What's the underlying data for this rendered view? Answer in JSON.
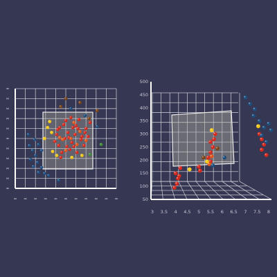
{
  "colors": {
    "background": "#363752",
    "grid": "#d8d8e0",
    "panel": "#b8b8a8",
    "panel_edge": "#ececec",
    "tick_text": "#c9cad6",
    "series_red": "#d42a1e",
    "series_dark_red": "#8a1f10",
    "series_orange": "#e0561c",
    "series_yellow": "#f2c818",
    "series_blue": "#1e4d7e",
    "series_green": "#3f8a3a",
    "series_brown": "#7a4418"
  },
  "chart_data": [
    {
      "type": "scatter",
      "view": "3d-front",
      "title": "",
      "xlabel": "",
      "ylabel": "",
      "xlim": [
        0,
        10
      ],
      "ylim": [
        0,
        10
      ],
      "grid": true,
      "series": [
        {
          "color": "#d42a1e",
          "points": [
            [
              4.4,
              6.1
            ],
            [
              5.2,
              5.6
            ],
            [
              6.0,
              6.3
            ],
            [
              4.9,
              5.0
            ],
            [
              5.6,
              4.6
            ],
            [
              6.6,
              5.2
            ],
            [
              4.3,
              4.3
            ],
            [
              5.0,
              6.8
            ],
            [
              6.3,
              6.9
            ],
            [
              7.0,
              6.0
            ],
            [
              5.4,
              3.9
            ],
            [
              4.6,
              3.6
            ],
            [
              6.8,
              4.3
            ],
            [
              5.9,
              5.4
            ],
            [
              4.1,
              5.4
            ],
            [
              7.2,
              5.2
            ],
            [
              5.1,
              4.2
            ],
            [
              6.1,
              3.6
            ],
            [
              3.9,
              4.7
            ],
            [
              5.7,
              6.1
            ],
            [
              6.5,
              4.9
            ],
            [
              4.8,
              6.4
            ],
            [
              7.4,
              6.6
            ],
            [
              5.3,
              5.1
            ],
            [
              4.5,
              3.1
            ],
            [
              6.2,
              6.0
            ],
            [
              5.5,
              7.1
            ],
            [
              6.9,
              5.6
            ],
            [
              4.2,
              5.9
            ],
            [
              5.8,
              4.2
            ]
          ]
        },
        {
          "color": "#e0561c",
          "points": [
            [
              5.5,
              5.0
            ],
            [
              4.7,
              4.9
            ],
            [
              6.4,
              5.7
            ],
            [
              5.0,
              3.8
            ],
            [
              6.1,
              4.4
            ],
            [
              5.8,
              6.6
            ],
            [
              4.4,
              5.1
            ],
            [
              7.0,
              4.8
            ]
          ]
        },
        {
          "color": "#f2c818",
          "points": [
            [
              3.2,
              6.1
            ],
            [
              3.6,
              5.6
            ],
            [
              2.9,
              5.0
            ],
            [
              4.1,
              3.3
            ],
            [
              6.6,
              3.3
            ],
            [
              3.7,
              3.7
            ],
            [
              3.4,
              6.7
            ],
            [
              5.6,
              3.1
            ]
          ]
        },
        {
          "color": "#1e4d7e",
          "points": [
            [
              1.4,
              4.3
            ],
            [
              1.7,
              3.8
            ],
            [
              2.0,
              3.3
            ],
            [
              1.5,
              2.9
            ],
            [
              2.2,
              2.6
            ],
            [
              2.6,
              2.1
            ],
            [
              2.3,
              1.6
            ],
            [
              1.8,
              2.2
            ],
            [
              2.9,
              1.5
            ],
            [
              3.3,
              1.3
            ],
            [
              1.3,
              5.4
            ],
            [
              1.9,
              4.9
            ],
            [
              2.6,
              3.8
            ],
            [
              4.3,
              0.8
            ],
            [
              8.1,
              6.2
            ],
            [
              6.9,
              7.3
            ],
            [
              5.5,
              8.0
            ],
            [
              2.3,
              4.4
            ]
          ]
        },
        {
          "color": "#7a4418",
          "points": [
            [
              5.0,
              9.0
            ],
            [
              8.1,
              7.8
            ],
            [
              7.3,
              7.0
            ],
            [
              4.5,
              8.2
            ],
            [
              6.4,
              8.6
            ]
          ]
        },
        {
          "color": "#3f8a3a",
          "points": [
            [
              7.4,
              3.4
            ],
            [
              8.5,
              4.4
            ]
          ]
        }
      ]
    },
    {
      "type": "scatter",
      "view": "3d-side",
      "title": "",
      "xlabel": "",
      "ylabel": "",
      "zlabel": "",
      "x_ticks": [
        "3",
        "3.5",
        "4",
        "4.5",
        "5",
        "5.5",
        "6",
        "6.5",
        "7",
        "7.5",
        "8"
      ],
      "y_ticks": [
        "50",
        "100",
        "150",
        "200",
        "250",
        "300",
        "350",
        "400",
        "450",
        "500"
      ],
      "xlim": [
        3,
        8
      ],
      "ylim": [
        50,
        500
      ],
      "grid": true,
      "series": [
        {
          "color": "#d42a1e",
          "points": [
            [
              4.0,
              150
            ],
            [
              4.1,
              130
            ],
            [
              4.05,
              110
            ],
            [
              4.2,
              170
            ],
            [
              3.95,
              95
            ],
            [
              4.15,
              140
            ],
            [
              5.5,
              270
            ],
            [
              5.6,
              250
            ],
            [
              5.5,
              230
            ],
            [
              5.7,
              300
            ],
            [
              5.4,
              210
            ],
            [
              5.5,
              195
            ],
            [
              5.65,
              280
            ],
            [
              5.0,
              175
            ],
            [
              5.05,
              160
            ],
            [
              7.6,
              300
            ],
            [
              7.7,
              280
            ],
            [
              7.8,
              260
            ],
            [
              7.7,
              240
            ],
            [
              7.9,
              220
            ]
          ]
        },
        {
          "color": "#e0561c",
          "points": [
            [
              5.55,
              215
            ],
            [
              5.45,
              185
            ]
          ]
        },
        {
          "color": "#f2c818",
          "points": [
            [
              5.55,
              315
            ],
            [
              4.6,
              165
            ],
            [
              5.35,
              195
            ],
            [
              7.55,
              330
            ]
          ]
        },
        {
          "color": "#1e4d7e",
          "points": [
            [
              7.0,
              440
            ],
            [
              7.2,
              415
            ],
            [
              7.4,
              395
            ],
            [
              7.35,
              370
            ],
            [
              7.6,
              350
            ],
            [
              7.8,
              325
            ],
            [
              8.1,
              315
            ],
            [
              7.7,
              295
            ],
            [
              7.9,
              270
            ],
            [
              5.6,
              180
            ],
            [
              6.1,
              210
            ],
            [
              8.0,
              340
            ]
          ]
        },
        {
          "color": "#7a4418",
          "points": [
            [
              5.2,
              210
            ],
            [
              5.8,
              245
            ]
          ]
        }
      ]
    }
  ]
}
